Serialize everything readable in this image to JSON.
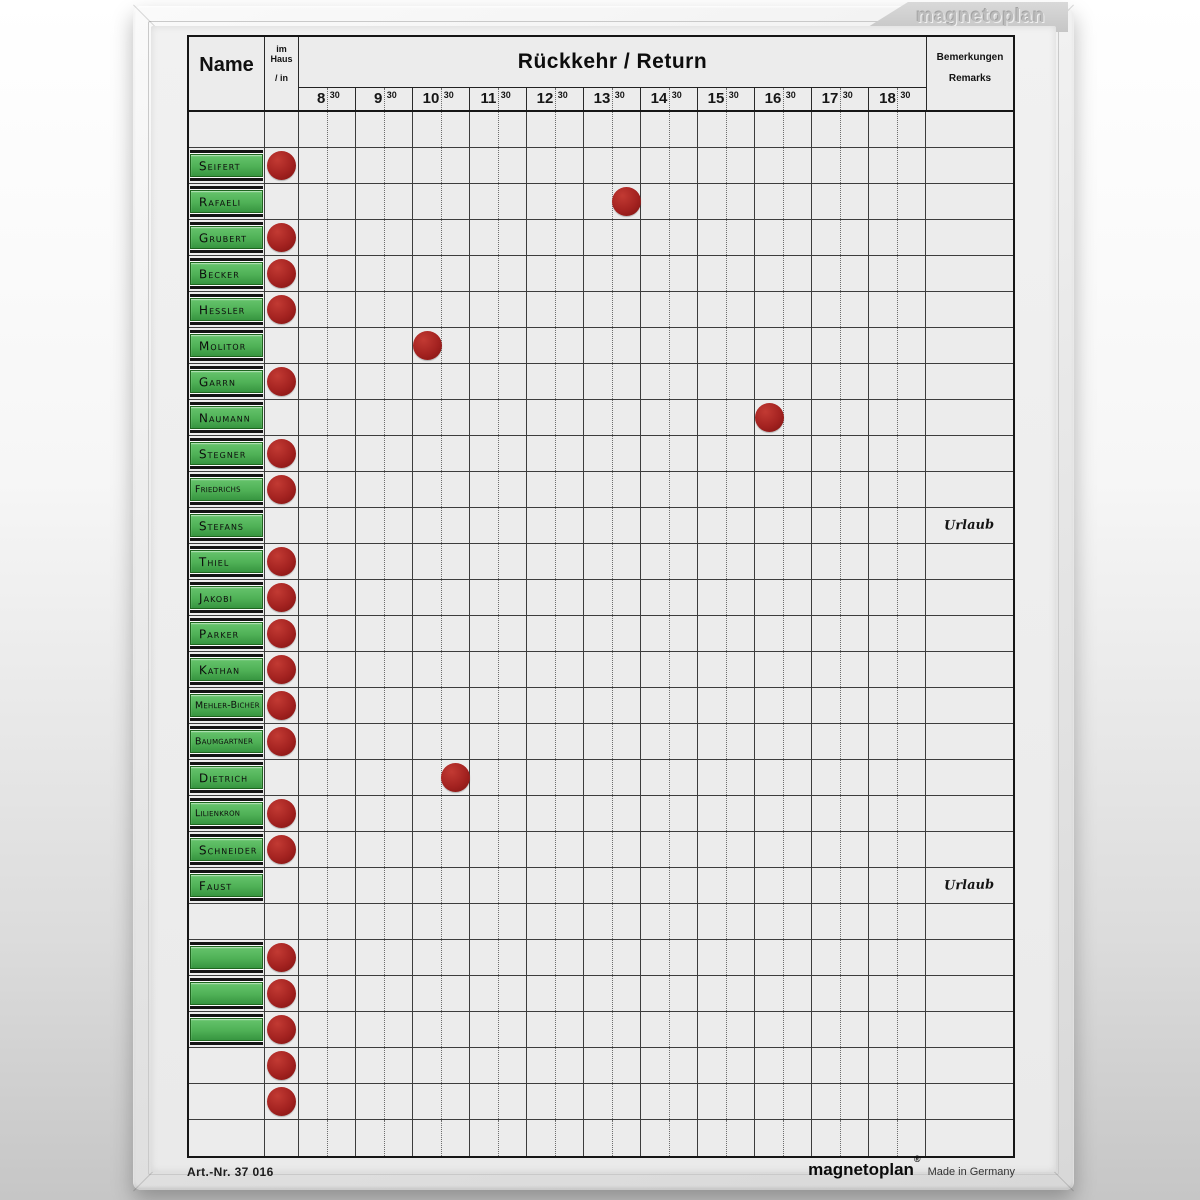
{
  "branding": {
    "frame_tab_logo": "magnetoplan",
    "footer_brand": "magnetoplan",
    "footer_reg": "®",
    "footer_made_in": "Made in Germany",
    "footer_art_nr": "Art.-Nr. 37 016"
  },
  "header": {
    "name_label": "Name",
    "im_haus_lines": [
      "im",
      "Haus",
      "/ in"
    ],
    "return_label": "Rückkehr / Return",
    "remarks_lines": [
      "Bemerkungen",
      "Remarks"
    ],
    "time_hours": [
      "8",
      "9",
      "10",
      "11",
      "12",
      "13",
      "14",
      "15",
      "16",
      "17",
      "18"
    ],
    "time_minutes": "30"
  },
  "colors": {
    "label_green": "#4fb156",
    "label_green_light": "#66c46c",
    "label_green_dark": "#379540",
    "magnet_red": "#a32220",
    "grid_line": "#3d3d3d"
  },
  "rows": [
    {},
    {
      "name": "Seifert",
      "label": true,
      "in_house": true
    },
    {
      "name": "Rafaeli",
      "label": true,
      "in_house": false,
      "return_time": "13:30"
    },
    {
      "name": "Grubert",
      "label": true,
      "in_house": true
    },
    {
      "name": "Becker",
      "label": true,
      "in_house": true
    },
    {
      "name": "Hessler",
      "label": true,
      "in_house": true
    },
    {
      "name": "Molitor",
      "label": true,
      "in_house": false,
      "return_time": "10:00"
    },
    {
      "name": "Garrn",
      "label": true,
      "in_house": true
    },
    {
      "name": "Naumann",
      "label": true,
      "in_house": false,
      "return_time": "16:00"
    },
    {
      "name": "Stegner",
      "label": true,
      "in_house": true
    },
    {
      "name": "Friedrichs",
      "label": true,
      "in_house": true
    },
    {
      "name": "Stefans",
      "label": true,
      "in_house": false,
      "remark": "Urlaub"
    },
    {
      "name": "Thiel",
      "label": true,
      "in_house": true
    },
    {
      "name": "Jakobi",
      "label": true,
      "in_house": true
    },
    {
      "name": "Parker",
      "label": true,
      "in_house": true
    },
    {
      "name": "Kathan",
      "label": true,
      "in_house": true
    },
    {
      "name": "Mehler-Bicher",
      "label": true,
      "in_house": true
    },
    {
      "name": "Baumgartner",
      "label": true,
      "in_house": true
    },
    {
      "name": "Dietrich",
      "label": true,
      "in_house": false,
      "return_time": "10:30"
    },
    {
      "name": "Lilienkron",
      "label": true,
      "in_house": true
    },
    {
      "name": "Schneider",
      "label": true,
      "in_house": true
    },
    {
      "name": "Faust",
      "label": true,
      "in_house": false,
      "remark": "Urlaub"
    },
    {},
    {
      "name": "",
      "label": true,
      "in_house": true
    },
    {
      "name": "",
      "label": true,
      "in_house": true
    },
    {
      "name": "",
      "label": true,
      "in_house": true
    },
    {
      "name": "",
      "label": false,
      "in_house": true
    },
    {
      "name": "",
      "label": false,
      "in_house": true
    },
    {}
  ]
}
